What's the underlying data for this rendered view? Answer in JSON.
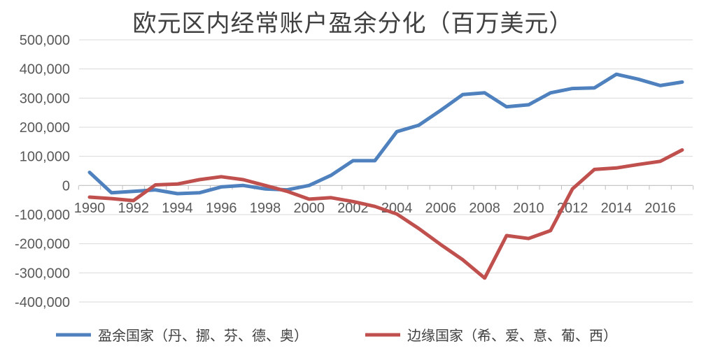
{
  "chart_data": {
    "type": "line",
    "title": "欧元区内经常账户盈余分化（百万美元）",
    "xlabel": "",
    "ylabel": "",
    "ylim": [
      -400000,
      500000
    ],
    "y_ticks": [
      500000,
      400000,
      300000,
      200000,
      100000,
      0,
      -100000,
      -200000,
      -300000,
      -400000
    ],
    "y_tick_labels": [
      "500,000",
      "400,000",
      "300,000",
      "200,000",
      "100,000",
      "0",
      "-100,000",
      "-200,000",
      "-300,000",
      "-400,000"
    ],
    "x": [
      1990,
      1991,
      1992,
      1993,
      1994,
      1995,
      1996,
      1997,
      1998,
      1999,
      2000,
      2001,
      2002,
      2003,
      2004,
      2005,
      2006,
      2007,
      2008,
      2009,
      2010,
      2011,
      2012,
      2013,
      2014,
      2015,
      2016,
      2017
    ],
    "x_tick_labels": [
      "1990",
      "1992",
      "1994",
      "1996",
      "1998",
      "2000",
      "2002",
      "2004",
      "2006",
      "2008",
      "2010",
      "2012",
      "2014",
      "2016"
    ],
    "grid": true,
    "legend_position": "bottom",
    "series": [
      {
        "name": "盈余国家（丹、挪、芬、德、奥）",
        "color": "#4e81bd",
        "values": [
          45000,
          -25000,
          -20000,
          -15000,
          -28000,
          -25000,
          -5000,
          0,
          -12000,
          -15000,
          0,
          35000,
          85000,
          85000,
          185000,
          207000,
          258000,
          312000,
          318000,
          270000,
          277000,
          318000,
          333000,
          335000,
          382000,
          365000,
          343000,
          355000
        ]
      },
      {
        "name": "边缘国家（希、爱、意、葡、西）",
        "color": "#c0504d",
        "values": [
          -40000,
          -45000,
          -52000,
          2000,
          5000,
          20000,
          30000,
          20000,
          0,
          -20000,
          -47000,
          -42000,
          -55000,
          -72000,
          -98000,
          -148000,
          -203000,
          -255000,
          -318000,
          -172000,
          -182000,
          -155000,
          -12000,
          55000,
          60000,
          72000,
          83000,
          122000
        ]
      }
    ]
  }
}
